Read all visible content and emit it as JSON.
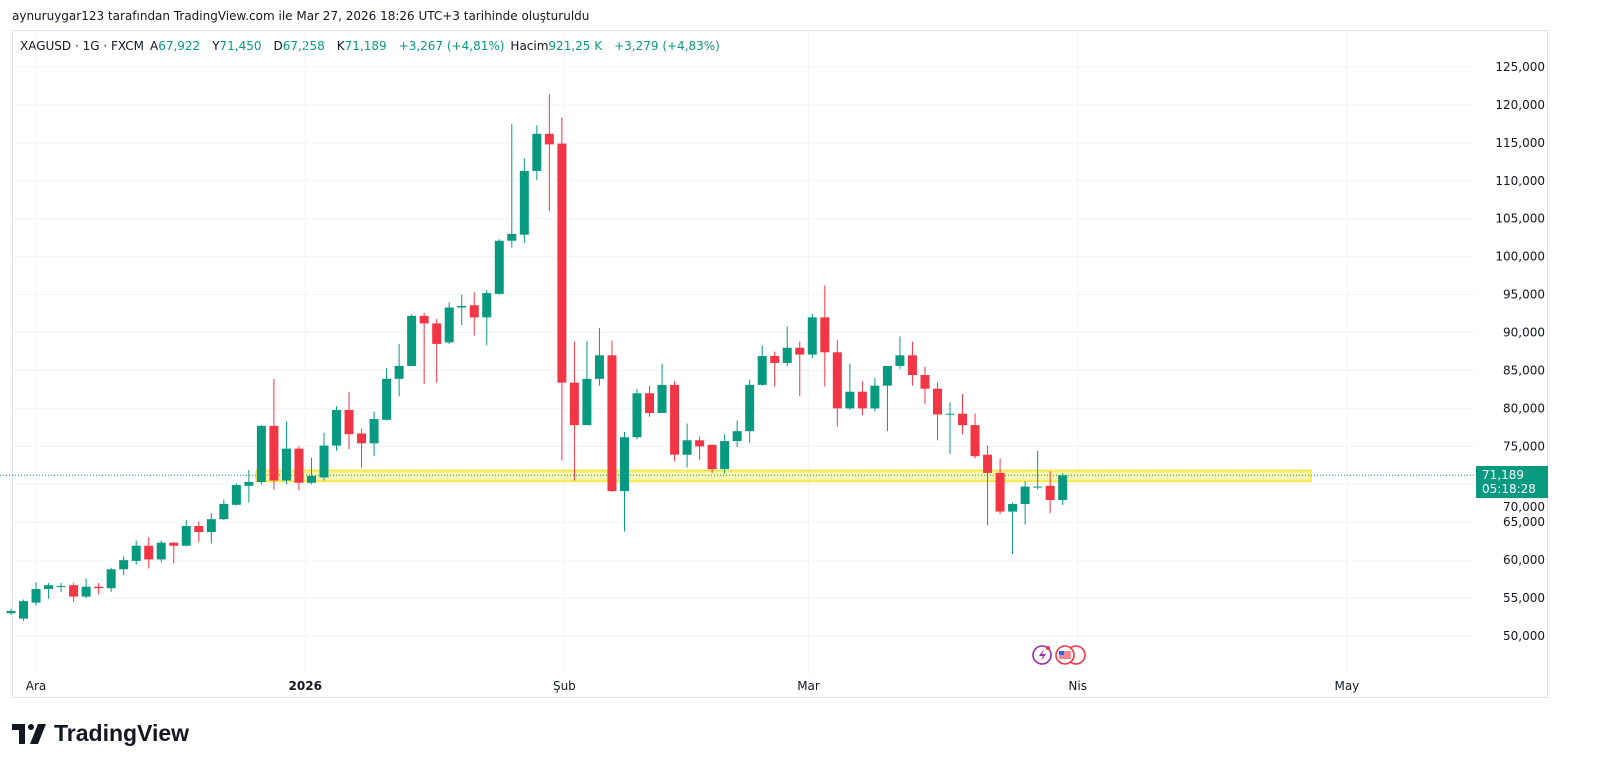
{
  "caption": "aynuruygar123 tarafından TradingView.com ile Mar 27, 2026 18:26 UTC+3 tarihinde oluşturuldu",
  "legend": {
    "symbol": "XAGUSD · 1G · FXCM",
    "open_label": "A",
    "open": "67,922",
    "high_label": "Y",
    "high": "71,450",
    "low_label": "D",
    "low": "67,258",
    "close_label": "K",
    "close": "71,189",
    "change": "+3,267 (+4,81%)",
    "volume_label": "Hacim",
    "volume": "921,25 K",
    "volume_change": "+3,279 (+4,83%)"
  },
  "price_tag": {
    "price": "71,189",
    "countdown": "05:18:28"
  },
  "logo": {
    "text": "TradingView"
  },
  "colors": {
    "up": "#089981",
    "down": "#f23645",
    "zone": "#f7e84a",
    "grid": "#f0f3fa"
  },
  "chart_data": {
    "type": "candlestick",
    "symbol": "XAGUSD",
    "interval": "1G",
    "x": "bar index",
    "ohlc": [
      [
        53.0,
        53.6,
        52.8,
        53.3
      ],
      [
        52.3,
        54.8,
        52.0,
        54.6
      ],
      [
        54.4,
        57.1,
        54.0,
        56.2
      ],
      [
        56.2,
        57.0,
        54.9,
        56.7
      ],
      [
        56.5,
        57.0,
        55.8,
        56.6
      ],
      [
        56.7,
        57.0,
        54.5,
        55.2
      ],
      [
        55.2,
        57.6,
        55.0,
        56.5
      ],
      [
        56.5,
        57.0,
        55.5,
        56.3
      ],
      [
        56.3,
        59.0,
        55.8,
        58.8
      ],
      [
        58.8,
        60.5,
        58.0,
        60.0
      ],
      [
        59.9,
        62.6,
        59.4,
        61.9
      ],
      [
        61.9,
        63.0,
        58.9,
        60.1
      ],
      [
        60.1,
        62.6,
        59.7,
        62.3
      ],
      [
        62.3,
        62.4,
        59.6,
        61.9
      ],
      [
        61.9,
        65.3,
        61.8,
        64.5
      ],
      [
        64.5,
        65.1,
        62.4,
        63.7
      ],
      [
        63.7,
        66.2,
        62.2,
        65.4
      ],
      [
        65.4,
        68.0,
        65.3,
        67.4
      ],
      [
        67.3,
        70.1,
        67.2,
        69.9
      ],
      [
        69.8,
        71.9,
        67.6,
        70.3
      ],
      [
        70.3,
        77.8,
        70.0,
        77.7
      ],
      [
        77.7,
        83.9,
        69.3,
        70.5
      ],
      [
        70.5,
        78.3,
        70.0,
        74.7
      ],
      [
        74.7,
        75.0,
        69.2,
        70.2
      ],
      [
        70.2,
        73.5,
        70.0,
        71.1
      ],
      [
        70.9,
        76.8,
        70.5,
        75.1
      ],
      [
        75.1,
        80.3,
        74.4,
        79.8
      ],
      [
        79.8,
        82.2,
        74.6,
        76.6
      ],
      [
        76.7,
        77.3,
        72.2,
        75.4
      ],
      [
        75.4,
        79.6,
        73.7,
        78.6
      ],
      [
        78.5,
        85.3,
        78.4,
        83.9
      ],
      [
        83.9,
        88.5,
        81.6,
        85.6
      ],
      [
        85.6,
        92.4,
        85.6,
        92.2
      ],
      [
        92.2,
        92.6,
        83.2,
        91.2
      ],
      [
        91.2,
        91.8,
        83.4,
        88.5
      ],
      [
        88.7,
        94.0,
        88.5,
        93.3
      ],
      [
        93.3,
        95.0,
        91.0,
        93.5
      ],
      [
        93.6,
        95.3,
        89.6,
        92.0
      ],
      [
        92.0,
        95.6,
        88.3,
        95.2
      ],
      [
        95.1,
        102.3,
        95.0,
        102.1
      ],
      [
        102.1,
        117.5,
        101.2,
        103.0
      ],
      [
        102.9,
        113.0,
        101.8,
        111.3
      ],
      [
        111.3,
        117.3,
        110.1,
        116.2
      ],
      [
        116.2,
        121.4,
        106.0,
        114.8
      ],
      [
        114.9,
        118.4,
        73.1,
        83.4
      ],
      [
        83.4,
        88.8,
        70.5,
        77.8
      ],
      [
        77.8,
        88.9,
        77.8,
        83.9
      ],
      [
        83.9,
        90.6,
        83.0,
        87.0
      ],
      [
        87.0,
        88.9,
        69.0,
        69.1
      ],
      [
        69.1,
        76.9,
        63.8,
        76.2
      ],
      [
        76.2,
        82.6,
        75.9,
        82.0
      ],
      [
        82.0,
        83.0,
        78.9,
        79.4
      ],
      [
        79.4,
        85.9,
        79.4,
        83.1
      ],
      [
        83.1,
        83.6,
        73.0,
        73.9
      ],
      [
        73.9,
        78.0,
        72.2,
        75.8
      ],
      [
        75.8,
        76.3,
        73.2,
        75.0
      ],
      [
        75.2,
        75.2,
        71.5,
        72.0
      ],
      [
        72.0,
        76.6,
        71.4,
        75.7
      ],
      [
        75.7,
        78.4,
        74.9,
        77.0
      ],
      [
        77.0,
        83.8,
        75.5,
        83.1
      ],
      [
        83.1,
        88.3,
        83.0,
        86.9
      ],
      [
        86.9,
        87.5,
        82.9,
        86.0
      ],
      [
        86.0,
        90.8,
        85.6,
        88.0
      ],
      [
        88.0,
        88.8,
        81.6,
        87.1
      ],
      [
        87.1,
        92.5,
        86.6,
        92.0
      ],
      [
        92.0,
        96.2,
        82.9,
        87.4
      ],
      [
        87.4,
        89.0,
        77.6,
        80.0
      ],
      [
        80.0,
        85.9,
        79.8,
        82.2
      ],
      [
        82.2,
        83.6,
        79.1,
        80.0
      ],
      [
        80.0,
        84.0,
        79.6,
        83.0
      ],
      [
        83.0,
        85.6,
        77.0,
        85.6
      ],
      [
        85.6,
        89.5,
        85.2,
        87.0
      ],
      [
        87.0,
        88.8,
        83.0,
        84.4
      ],
      [
        84.4,
        85.5,
        80.6,
        82.6
      ],
      [
        82.6,
        83.4,
        75.8,
        79.2
      ],
      [
        79.2,
        80.8,
        74.0,
        79.3
      ],
      [
        79.3,
        81.9,
        76.6,
        77.8
      ],
      [
        77.8,
        79.3,
        73.4,
        73.7
      ],
      [
        73.9,
        75.1,
        64.6,
        71.5
      ],
      [
        71.5,
        73.4,
        66.1,
        66.4
      ],
      [
        66.4,
        67.6,
        60.8,
        67.4
      ],
      [
        67.4,
        70.4,
        64.7,
        69.7
      ],
      [
        69.6,
        74.4,
        69.3,
        69.7
      ],
      [
        69.8,
        71.7,
        66.2,
        67.922
      ],
      [
        67.922,
        71.45,
        67.258,
        71.189
      ]
    ],
    "ohlc_order": [
      "open",
      "high",
      "low",
      "close"
    ],
    "y_ticks": [
      "125,000",
      "120,000",
      "115,000",
      "110,000",
      "105,000",
      "100,000",
      "95,000",
      "90,000",
      "85,000",
      "80,000",
      "75,000",
      "70,000",
      "65,000",
      "60,000",
      "55,000",
      "50,000"
    ],
    "y_tick_values": [
      125,
      120,
      115,
      110,
      105,
      100,
      95,
      90,
      85,
      80,
      75,
      70,
      65,
      60,
      55,
      50
    ],
    "ylim": [
      46,
      128
    ],
    "x_ticks": [
      {
        "label": "Ara",
        "bar": 2
      },
      {
        "label": "2026",
        "bar": 23.5
      },
      {
        "label": "Şub",
        "bar": 44.2
      },
      {
        "label": "Mar",
        "bar": 63.7
      },
      {
        "label": "Nis",
        "bar": 85.2
      },
      {
        "label": "May",
        "bar": 106.7
      }
    ],
    "support_zone": {
      "from_bar": 19.6,
      "to_bar": 103.8,
      "low": 70.4,
      "high": 71.8
    },
    "last_price": 71.189,
    "grid": true
  }
}
